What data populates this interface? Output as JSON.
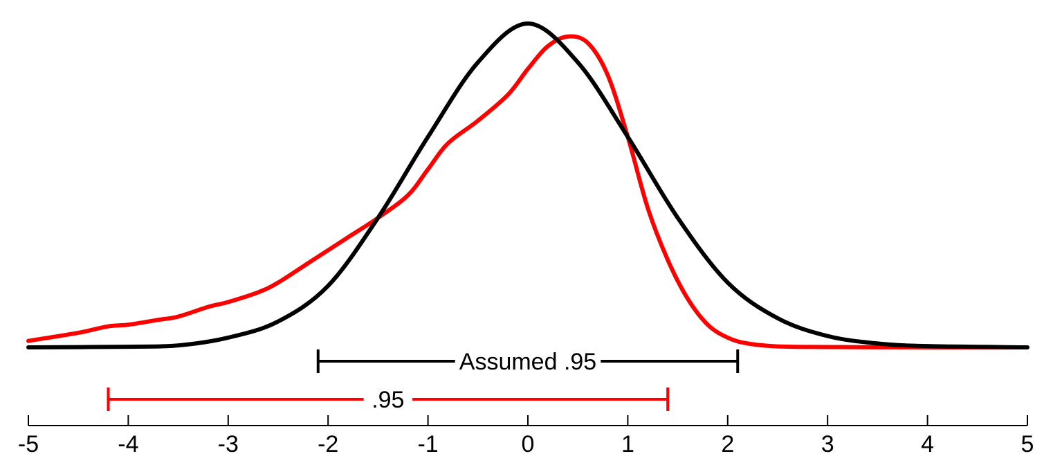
{
  "chart_data": {
    "type": "line",
    "title": "",
    "xlabel": "",
    "ylabel": "",
    "xlim": [
      -5,
      5
    ],
    "x_ticks": [
      "-5",
      "-4",
      "-3",
      "-2",
      "-1",
      "0",
      "1",
      "2",
      "3",
      "4",
      "5"
    ],
    "series": [
      {
        "color": "#ff0000",
        "x": [
          -5,
          -4.5,
          -4.2,
          -4,
          -3.7,
          -3.5,
          -3.2,
          -3,
          -2.7,
          -2.5,
          -2.2,
          -2,
          -1.8,
          -1.5,
          -1.2,
          -1,
          -0.8,
          -0.5,
          -0.2,
          0,
          0.2,
          0.4,
          0.6,
          0.8,
          1,
          1.2,
          1.4,
          1.6,
          1.8,
          2,
          2.2,
          2.5,
          3,
          4,
          5
        ],
        "y": [
          0.02,
          0.045,
          0.065,
          0.07,
          0.085,
          0.095,
          0.125,
          0.14,
          0.17,
          0.2,
          0.26,
          0.3,
          0.34,
          0.4,
          0.47,
          0.55,
          0.63,
          0.7,
          0.78,
          0.86,
          0.93,
          0.96,
          0.94,
          0.84,
          0.65,
          0.43,
          0.27,
          0.15,
          0.07,
          0.03,
          0.012,
          0.003,
          0.001,
          0.0,
          0.0
        ]
      },
      {
        "color": "#000000",
        "distribution": "standard-normal-like",
        "x": [
          -5,
          -4,
          -3.5,
          -3,
          -2.5,
          -2,
          -1.5,
          -1,
          -0.5,
          0,
          0.5,
          1,
          1.5,
          2,
          2.5,
          3,
          3.5,
          4,
          5
        ],
        "y": [
          0,
          0.002,
          0.006,
          0.03,
          0.08,
          0.19,
          0.4,
          0.65,
          0.88,
          1.0,
          0.88,
          0.65,
          0.4,
          0.2,
          0.09,
          0.035,
          0.012,
          0.004,
          0.0
        ]
      }
    ],
    "intervals": [
      {
        "label": "Assumed .95",
        "color": "#000000",
        "from": -2.1,
        "to": 2.1
      },
      {
        "label": ".95",
        "color": "#ff0000",
        "from": -4.2,
        "to": 1.4
      }
    ],
    "grid": false,
    "legend": "none"
  }
}
